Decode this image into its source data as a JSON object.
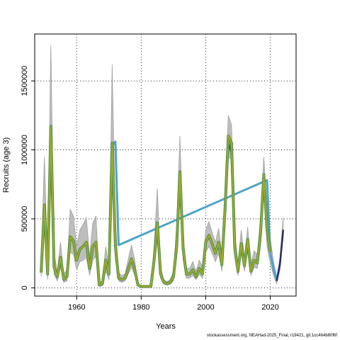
{
  "chart_data": {
    "type": "line",
    "xlabel": "Years",
    "ylabel": "Recruits (age 3)",
    "xlim": [
      1947,
      2028
    ],
    "ylim": [
      -60000,
      1840000
    ],
    "x_ticks": [
      1960,
      1980,
      2000,
      2020
    ],
    "y_ticks": [
      0,
      500000,
      1000000,
      1500000
    ],
    "grid": true,
    "colors": {
      "band": "#bebebe",
      "band_edge": "#a0a0a0",
      "main": "#9aab2c",
      "main_edge": "#4d8a4a",
      "alt1": "#2d4fa8",
      "alt2": "#4ea3c9",
      "projection": "#1f2d7a",
      "projection_tail": "#333333"
    },
    "series": [
      {
        "role": "main",
        "x": [
          1949,
          1950,
          1951,
          1952,
          1953,
          1954,
          1955,
          1956,
          1957,
          1958,
          1959,
          1960,
          1961,
          1962,
          1963,
          1964,
          1965,
          1966,
          1967,
          1968,
          1969,
          1970,
          1971,
          1972,
          1973,
          1974,
          1975,
          1976,
          1977,
          1978,
          1979,
          1980,
          1981,
          1982,
          1983,
          1984,
          1985,
          1986,
          1987,
          1988,
          1989,
          1990,
          1991,
          1992,
          1993,
          1994,
          1995,
          1996,
          1997,
          1998,
          1999,
          2000,
          2001,
          2002,
          2003,
          2004,
          2005,
          2006,
          2007,
          2008,
          2009,
          2010,
          2011,
          2012,
          2013,
          2014,
          2015,
          2016,
          2017,
          2018,
          2019,
          2020
        ],
        "y": [
          110000,
          600000,
          100000,
          1170000,
          150000,
          80000,
          220000,
          60000,
          80000,
          370000,
          340000,
          200000,
          280000,
          300000,
          330000,
          140000,
          300000,
          330000,
          20000,
          30000,
          200000,
          100000,
          1050000,
          300000,
          70000,
          60000,
          70000,
          140000,
          210000,
          130000,
          20000,
          10000,
          10000,
          10000,
          10000,
          200000,
          470000,
          100000,
          40000,
          30000,
          40000,
          80000,
          300000,
          840000,
          280000,
          100000,
          100000,
          130000,
          80000,
          140000,
          100000,
          330000,
          380000,
          320000,
          250000,
          330000,
          170000,
          580000,
          1100000,
          1050000,
          290000,
          120000,
          320000,
          160000,
          350000,
          120000,
          200000,
          180000,
          400000,
          820000,
          420000,
          260000
        ]
      },
      {
        "role": "projection",
        "x": [
          2020,
          2021,
          2022,
          2023,
          2024
        ],
        "y": [
          260000,
          130000,
          50000,
          170000,
          420000
        ]
      }
    ],
    "uncertainty": {
      "x": [
        1949,
        1950,
        1951,
        1952,
        1953,
        1954,
        1955,
        1956,
        1957,
        1958,
        1959,
        1960,
        1961,
        1962,
        1963,
        1964,
        1965,
        1966,
        1967,
        1968,
        1969,
        1970,
        1971,
        1972,
        1973,
        1974,
        1975,
        1976,
        1977,
        1978,
        1979,
        1980,
        1981,
        1982,
        1983,
        1984,
        1985,
        1986,
        1987,
        1988,
        1989,
        1990,
        1991,
        1992,
        1993,
        1994,
        1995,
        1996,
        1997,
        1998,
        1999,
        2000,
        2001,
        2002,
        2003,
        2004,
        2005,
        2006,
        2007,
        2008,
        2009,
        2010,
        2011,
        2012,
        2013,
        2014,
        2015,
        2016,
        2017,
        2018,
        2019,
        2020,
        2021,
        2022,
        2023,
        2024
      ],
      "lower": [
        80000,
        450000,
        60000,
        900000,
        100000,
        50000,
        150000,
        40000,
        50000,
        260000,
        240000,
        130000,
        190000,
        200000,
        220000,
        90000,
        200000,
        230000,
        10000,
        15000,
        120000,
        60000,
        850000,
        200000,
        50000,
        40000,
        50000,
        100000,
        150000,
        90000,
        15000,
        5000,
        5000,
        5000,
        5000,
        140000,
        350000,
        70000,
        25000,
        20000,
        25000,
        50000,
        220000,
        650000,
        200000,
        70000,
        70000,
        90000,
        60000,
        100000,
        70000,
        260000,
        300000,
        250000,
        190000,
        250000,
        120000,
        450000,
        950000,
        930000,
        220000,
        90000,
        250000,
        120000,
        260000,
        90000,
        150000,
        140000,
        310000,
        700000,
        300000,
        180000,
        90000,
        30000,
        130000,
        370000
      ],
      "upper": [
        150000,
        950000,
        150000,
        1760000,
        250000,
        120000,
        330000,
        100000,
        130000,
        570000,
        520000,
        300000,
        420000,
        460000,
        510000,
        230000,
        470000,
        520000,
        40000,
        50000,
        300000,
        150000,
        1620000,
        470000,
        110000,
        90000,
        100000,
        210000,
        310000,
        200000,
        30000,
        15000,
        15000,
        15000,
        15000,
        300000,
        720000,
        150000,
        60000,
        45000,
        60000,
        120000,
        450000,
        1100000,
        380000,
        140000,
        140000,
        190000,
        120000,
        200000,
        150000,
        420000,
        480000,
        400000,
        330000,
        430000,
        240000,
        720000,
        1250000,
        1180000,
        400000,
        170000,
        420000,
        220000,
        440000,
        170000,
        270000,
        240000,
        520000,
        950000,
        560000,
        360000,
        190000,
        80000,
        220000,
        510000
      ]
    },
    "alternate_runs": [
      {
        "role": "alt1",
        "x": [
          2005,
          2006,
          2007,
          2008,
          2009,
          2010
        ],
        "y": [
          160000,
          560000,
          1050000,
          980000,
          270000,
          110000
        ]
      },
      {
        "role": "alt2",
        "x": [
          1971,
          1972,
          1973,
          2019,
          2020,
          2021,
          2022
        ],
        "y": [
          1030000,
          1060000,
          310000,
          780000,
          250000,
          140000,
          60000
        ]
      }
    ]
  },
  "footer_text": "stockassessment.org, NEAHad-2025_Final, r19421, git:1cc464b80f6f"
}
